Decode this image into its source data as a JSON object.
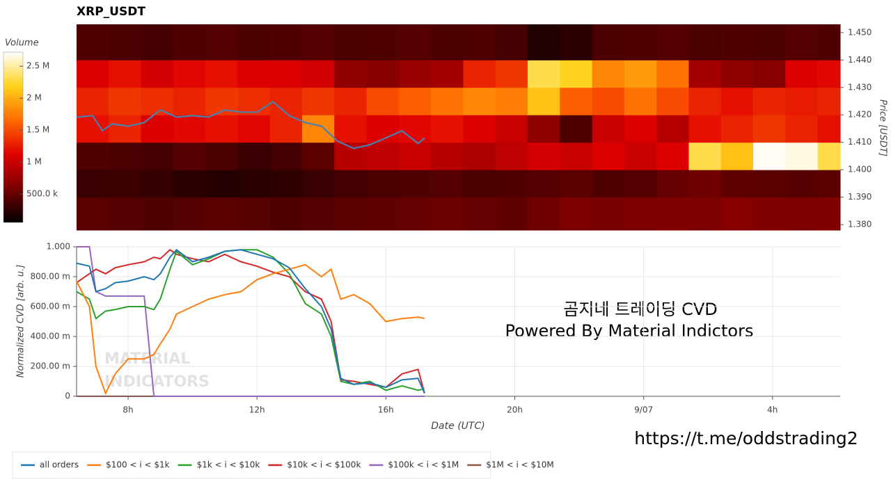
{
  "chart_data": [
    {
      "type": "heatmap",
      "title": "XRP_USDT",
      "y_label": "Price [USDT]",
      "xlim": [
        6.4,
        30.1
      ],
      "ylim": [
        1.378,
        1.453
      ],
      "x_bins": [
        6.4,
        7.4,
        8.4,
        9.4,
        10.4,
        11.4,
        12.4,
        13.4,
        14.4,
        15.4,
        16.4,
        17.4,
        18.4,
        19.4,
        20.4,
        21.4,
        22.4,
        23.4,
        24.4,
        25.4,
        26.4,
        27.4,
        28.4,
        29.4,
        30.1
      ],
      "y_bins": [
        1.378,
        1.39,
        1.4,
        1.41,
        1.42,
        1.43,
        1.44,
        1.453
      ],
      "yticks": [
        {
          "value": 1.38,
          "label": "1.380"
        },
        {
          "value": 1.39,
          "label": "1.390"
        },
        {
          "value": 1.4,
          "label": "1.400"
        },
        {
          "value": 1.41,
          "label": "1.410"
        },
        {
          "value": 1.42,
          "label": "1.420"
        },
        {
          "value": 1.43,
          "label": "1.430"
        },
        {
          "value": 1.44,
          "label": "1.440"
        },
        {
          "value": 1.45,
          "label": "1.450"
        }
      ],
      "values": [
        [
          450000,
          420000,
          400000,
          420000,
          450000,
          430000,
          400000,
          420000,
          450000,
          480000,
          500000,
          520000,
          500000,
          480000,
          550000,
          600000,
          580000,
          600000,
          620000,
          600000,
          650000,
          620000,
          600000,
          620000
        ],
        [
          300000,
          320000,
          280000,
          250000,
          220000,
          230000,
          260000,
          300000,
          350000,
          380000,
          400000,
          420000,
          380000,
          400000,
          420000,
          450000,
          400000,
          420000,
          500000,
          550000,
          480000,
          450000,
          420000,
          450000
        ],
        [
          400000,
          380000,
          350000,
          420000,
          380000,
          300000,
          350000,
          450000,
          900000,
          950000,
          1000000,
          900000,
          850000,
          950000,
          1050000,
          1000000,
          1100000,
          1000000,
          1100000,
          2300000,
          2100000,
          2700000,
          2650000,
          2300000
        ],
        [
          1200000,
          1300000,
          1100000,
          1150000,
          1200000,
          1150000,
          1300000,
          1800000,
          1200000,
          1100000,
          1150000,
          1200000,
          1100000,
          1000000,
          700000,
          400000,
          1000000,
          1100000,
          900000,
          1200000,
          1300000,
          1400000,
          1300000,
          1200000
        ],
        [
          1300000,
          1400000,
          1350000,
          1300000,
          1400000,
          1350000,
          1300000,
          1400000,
          1300000,
          1500000,
          1600000,
          1700000,
          1800000,
          1750000,
          2100000,
          1600000,
          1500000,
          1700000,
          1500000,
          1300000,
          1200000,
          1300000,
          1250000,
          1300000
        ],
        [
          1100000,
          1200000,
          1050000,
          1150000,
          1200000,
          1100000,
          1100000,
          1050000,
          700000,
          650000,
          750000,
          800000,
          1300000,
          1400000,
          2300000,
          2200000,
          1800000,
          1900000,
          1700000,
          800000,
          700000,
          650000,
          1100000,
          1150000
        ],
        [
          400000,
          380000,
          350000,
          400000,
          420000,
          380000,
          400000,
          420000,
          380000,
          400000,
          420000,
          380000,
          400000,
          350000,
          200000,
          250000,
          380000,
          400000,
          420000,
          380000,
          400000,
          380000,
          420000,
          400000
        ]
      ],
      "colormap": [
        "#000000",
        "#7a0000",
        "#e00000",
        "#ff6a00",
        "#ffd21a",
        "#ffffff"
      ],
      "colorbar": {
        "label": "Volume",
        "zlim": [
          55000,
          2720000
        ],
        "ticks": [
          {
            "value": 500000,
            "label": "500.0 k"
          },
          {
            "value": 1000000,
            "label": "1 M"
          },
          {
            "value": 1500000,
            "label": "1.5 M"
          },
          {
            "value": 2000000,
            "label": "2 M"
          },
          {
            "value": 2500000,
            "label": "2.5 M"
          }
        ]
      },
      "price_line": {
        "color": "#4a7fae",
        "x": [
          6.4,
          6.9,
          7.2,
          7.5,
          8,
          8.5,
          9,
          9.5,
          10,
          10.5,
          11,
          11.5,
          12,
          12.5,
          13,
          13.5,
          14,
          14.5,
          15,
          15.5,
          16,
          16.5,
          17,
          17.2
        ],
        "values": [
          1.4192,
          1.4197,
          1.4142,
          1.4167,
          1.4159,
          1.4172,
          1.4218,
          1.4192,
          1.4197,
          1.4192,
          1.4218,
          1.421,
          1.421,
          1.4248,
          1.4197,
          1.4172,
          1.4159,
          1.4104,
          1.4078,
          1.4091,
          1.4116,
          1.4142,
          1.4096,
          1.4116
        ]
      }
    },
    {
      "type": "line",
      "x_label": "Date (UTC)",
      "y_label": "Normalized CVD [arb. u.]",
      "xlim": [
        6.4,
        30.1
      ],
      "ylim": [
        0,
        1
      ],
      "xticks": [
        {
          "value": 8,
          "label": "8h"
        },
        {
          "value": 12,
          "label": "12h"
        },
        {
          "value": 16,
          "label": "16h"
        },
        {
          "value": 20,
          "label": "20h"
        },
        {
          "value": 24,
          "label": "9/07"
        },
        {
          "value": 28,
          "label": "4h"
        }
      ],
      "yticks": [
        0,
        {
          "value": 0.2,
          "label": "200.00 m"
        },
        {
          "value": 0.4,
          "label": "400.00 m"
        },
        {
          "value": 0.6,
          "label": "600.00 m"
        },
        {
          "value": 0.8,
          "label": "800.00 m"
        },
        {
          "value": 1,
          "label": "1.000"
        }
      ],
      "grid": true,
      "legend": "bottom",
      "x": [
        6.4,
        6.8,
        7.0,
        7.3,
        7.6,
        8.0,
        8.5,
        8.8,
        9.0,
        9.3,
        9.5,
        10,
        10.5,
        11,
        11.5,
        12,
        12.5,
        13,
        13.5,
        14,
        14.3,
        14.6,
        15,
        15.5,
        16,
        16.5,
        17,
        17.2
      ],
      "series": [
        {
          "name": "all orders",
          "color": "#1f77b4",
          "values": [
            0.89,
            0.87,
            0.7,
            0.72,
            0.76,
            0.77,
            0.8,
            0.78,
            0.82,
            0.93,
            0.98,
            0.9,
            0.93,
            0.97,
            0.98,
            0.95,
            0.92,
            0.86,
            0.72,
            0.6,
            0.45,
            0.12,
            0.08,
            0.09,
            0.06,
            0.11,
            0.12,
            0.02
          ]
        },
        {
          "name": "$100 < i < $1k",
          "color": "#ff7f0e",
          "values": [
            0.77,
            0.6,
            0.2,
            0.02,
            0.15,
            0.25,
            0.25,
            0.28,
            0.35,
            0.45,
            0.55,
            0.6,
            0.65,
            0.68,
            0.7,
            0.78,
            0.82,
            0.85,
            0.88,
            0.8,
            0.85,
            0.65,
            0.68,
            0.62,
            0.5,
            0.52,
            0.53,
            0.52
          ]
        },
        {
          "name": "$1k < i < $10k",
          "color": "#2ca02c",
          "values": [
            0.7,
            0.65,
            0.52,
            0.57,
            0.58,
            0.6,
            0.6,
            0.58,
            0.65,
            0.85,
            0.97,
            0.88,
            0.92,
            0.97,
            0.98,
            0.98,
            0.93,
            0.82,
            0.62,
            0.55,
            0.4,
            0.1,
            0.08,
            0.1,
            0.04,
            0.07,
            0.04,
            0.05
          ]
        },
        {
          "name": "$10k < i < $100k",
          "color": "#d62728",
          "values": [
            0.76,
            0.82,
            0.85,
            0.82,
            0.86,
            0.88,
            0.9,
            0.93,
            0.92,
            0.98,
            0.95,
            0.92,
            0.9,
            0.95,
            0.9,
            0.87,
            0.83,
            0.8,
            0.7,
            0.65,
            0.5,
            0.11,
            0.1,
            0.08,
            0.06,
            0.15,
            0.18,
            0.02
          ]
        },
        {
          "name": "$100k < i < $1M",
          "color": "#9467bd",
          "values": [
            1,
            1,
            0.7,
            0.67,
            0.67,
            0.67,
            0.67,
            0,
            0,
            0,
            0,
            0,
            0,
            0,
            0,
            0,
            0,
            0,
            0,
            0,
            0,
            0,
            0,
            0,
            0,
            0,
            0,
            0
          ]
        },
        {
          "name": "$1M < i < $10M",
          "color": "#8c564b",
          "values": [
            0,
            0,
            0,
            0,
            0,
            0,
            0,
            0,
            0,
            0,
            0,
            0,
            0,
            0,
            0,
            0,
            0,
            0,
            0,
            0,
            0,
            0,
            0,
            0,
            0,
            0,
            0,
            0
          ]
        }
      ],
      "annotations": [
        "곰지네 트레이딩 CVD",
        "Powered By Material Indictors",
        "https://t.me/oddstrading2",
        "MATERIAL",
        "INDICATORS"
      ]
    }
  ]
}
